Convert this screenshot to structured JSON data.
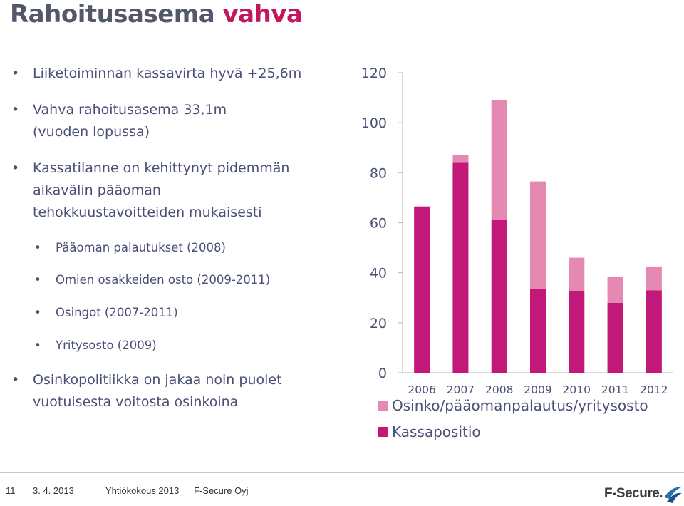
{
  "title": {
    "part1": "Rahoitusasema",
    "part2": "vahva"
  },
  "bullets": [
    {
      "lines": [
        "Liiketoiminnan kassavirta hyvä +25,6m"
      ]
    },
    {
      "lines": [
        "Vahva rahoitusasema 33,1m",
        "(vuoden lopussa)"
      ]
    },
    {
      "lines": [
        "Kassatilanne on kehittynyt pidemmän",
        "aikavälin pääoman",
        "tehokkuustavoitteiden mukaisesti"
      ]
    },
    {
      "sub": "Pääoman palautukset (2008)"
    },
    {
      "sub": "Omien osakkeiden osto (2009-2011)"
    },
    {
      "sub": "Osingot (2007-2011)"
    },
    {
      "sub": "Yritysosto (2009)"
    },
    {
      "lines": [
        "Osinkopolitiikka on jakaa noin puolet",
        "vuotuisesta voitosta osinkoina"
      ]
    }
  ],
  "chart_data": {
    "type": "bar",
    "stacked": true,
    "categories": [
      "2006",
      "2007",
      "2008",
      "2009",
      "2010",
      "2011",
      "2012"
    ],
    "ylim": [
      0,
      120
    ],
    "yticks": [
      "0",
      "20",
      "40",
      "60",
      "80",
      "100",
      "120"
    ],
    "series": [
      {
        "name": "Kassapositio",
        "color": "#c2187a",
        "values": [
          66.5,
          84,
          61,
          33.5,
          32.5,
          28,
          33
        ]
      },
      {
        "name": "Osinko/pääomanpalautus/yritysosto",
        "color": "#e589b2",
        "values": [
          0,
          3,
          48,
          43,
          13.5,
          10.5,
          9.5
        ]
      }
    ],
    "legend": [
      "Osinko/pääomanpalautus/yritysosto",
      "Kassapositio"
    ]
  },
  "footer": {
    "page": "11",
    "date": "3. 4. 2013",
    "event": "Yhtiökokous 2013",
    "company": "F-Secure Oyj",
    "logo_text": "F-Secure."
  }
}
